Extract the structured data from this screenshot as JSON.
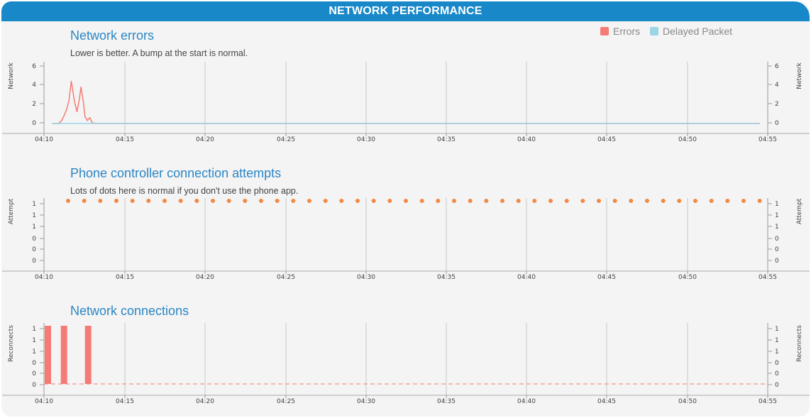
{
  "header": {
    "title": "NETWORK PERFORMANCE"
  },
  "colors": {
    "header": "#1888c9",
    "title": "#2b86c4",
    "errors": "#f47c75",
    "delayed": "#99d6e6",
    "dots": "#f28a45"
  },
  "chart_data": [
    {
      "type": "line",
      "title": "Network errors",
      "subtitle": "Lower is better. A bump at the start is normal.",
      "ylabel_left": "Network",
      "ylabel_right": "Network",
      "x_ticks": [
        "04:10",
        "04:15",
        "04:20",
        "04:25",
        "04:30",
        "04:35",
        "04:40",
        "04:45",
        "04:50",
        "04:55"
      ],
      "y_ticks": [
        "6",
        "4",
        "2",
        "0"
      ],
      "xlim": [
        0,
        45
      ],
      "ylim": [
        0,
        6
      ],
      "grid": "vertical",
      "legend": {
        "position": "top-right",
        "items": [
          {
            "label": "Errors",
            "color": "#f47c75"
          },
          {
            "label": "Delayed Packet",
            "color": "#99d6e6"
          }
        ]
      },
      "series": [
        {
          "name": "Errors",
          "color": "#f47c75",
          "x": [
            0.5,
            0.9,
            1.1,
            1.25,
            1.4,
            1.55,
            1.7,
            1.9,
            2.05,
            2.2,
            2.3,
            2.45,
            2.55,
            2.7,
            2.85,
            3.0,
            3.3,
            44.5
          ],
          "y": [
            0,
            0,
            0.3,
            0.8,
            1.4,
            2.3,
            4.3,
            2.2,
            1.2,
            2.5,
            3.7,
            2.2,
            0.7,
            0.3,
            0.6,
            0.05,
            0,
            0
          ]
        },
        {
          "name": "Delayed Packet",
          "color": "#99d6e6",
          "x": [
            0.5,
            44.5
          ],
          "y": [
            0,
            0
          ]
        }
      ]
    },
    {
      "type": "scatter",
      "title": "Phone controller connection attempts",
      "subtitle": "Lots of dots here is normal if you don't use the phone app.",
      "ylabel_left": "Attempt",
      "ylabel_right": "Attempt",
      "x_ticks": [
        "04:10",
        "04:15",
        "04:20",
        "04:25",
        "04:30",
        "04:35",
        "04:40",
        "04:45",
        "04:50",
        "04:55"
      ],
      "y_ticks": [
        "1",
        "1",
        "1",
        "0",
        "0",
        "0"
      ],
      "xlim": [
        0,
        45
      ],
      "ylim": [
        0,
        1
      ],
      "grid": "vertical",
      "series": [
        {
          "name": "",
          "color": "#f28a45",
          "x_start": 1.5,
          "x_step": 1.0,
          "count": 44,
          "y": 1
        }
      ]
    },
    {
      "type": "bar",
      "title": "Network connections",
      "subtitle": "",
      "ylabel_left": "Reconnects",
      "ylabel_right": "Reconnects",
      "x_ticks": [
        "04:10",
        "04:15",
        "04:20",
        "04:25",
        "04:30",
        "04:35",
        "04:40",
        "04:45",
        "04:50",
        "04:55"
      ],
      "y_ticks": [
        "1",
        "1",
        "1",
        "0",
        "0",
        "0"
      ],
      "xlim": [
        0,
        45
      ],
      "ylim": [
        0,
        1
      ],
      "grid": "vertical",
      "baseline": "dashed",
      "series": [
        {
          "name": "",
          "color": "#f47c75",
          "x": [
            0.0,
            1.0,
            2.5
          ],
          "values": [
            1,
            1,
            1
          ]
        }
      ]
    }
  ]
}
